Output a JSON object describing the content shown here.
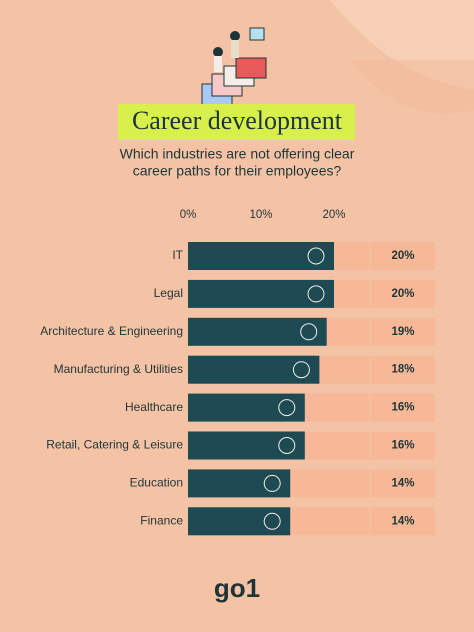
{
  "chart_data": {
    "type": "bar",
    "title": "Career development",
    "subtitle": [
      "Which industries are not offering clear",
      "career paths for their employees?"
    ],
    "categories": [
      "IT",
      "Legal",
      "Architecture & Engineering",
      "Manufacturing & Utilities",
      "Healthcare",
      "Retail, Catering & Leisure",
      "Education",
      "Finance"
    ],
    "series": [
      {
        "color": "#1d4a53",
        "values": [
          20,
          20,
          19,
          18,
          16,
          16,
          14,
          14
        ],
        "value_labels": [
          "20%",
          "20%",
          "19%",
          "18%",
          "16%",
          "16%",
          "14%",
          "14%"
        ]
      }
    ],
    "xlim": [
      0,
      20
    ],
    "xticks": [
      {
        "value": 0,
        "label": "0%"
      },
      {
        "value": 10,
        "label": "10%"
      },
      {
        "value": 20,
        "label": "20%"
      }
    ]
  },
  "logo": "go1"
}
